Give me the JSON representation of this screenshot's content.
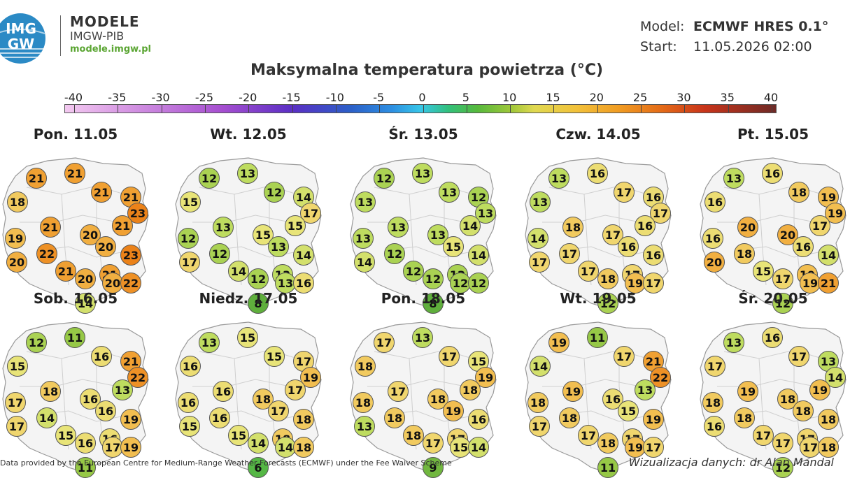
{
  "header": {
    "logo_text": [
      "IMG",
      "GW"
    ],
    "brand_title": "MODELE",
    "brand_sub": "IMGW-PIB",
    "brand_url": "modele.imgw.pl",
    "model_label": "Model:",
    "model_value": "ECMWF HRES 0.1°",
    "start_label": "Start:",
    "start_value": "11.05.2026 02:00"
  },
  "title": "Maksymalna temperatura powietrza (°C)",
  "colorbar": {
    "ticks": [
      "-40",
      "-35",
      "-30",
      "-25",
      "-20",
      "-15",
      "-10",
      "-5",
      "0",
      "5",
      "10",
      "15",
      "20",
      "25",
      "30",
      "35",
      "40"
    ],
    "range": [
      -40,
      40
    ]
  },
  "panels": [
    {
      "title": "Pon. 11.05",
      "values": [
        21,
        21,
        21,
        18,
        21,
        23,
        20,
        19,
        21,
        21,
        20,
        21,
        22,
        20,
        23,
        21,
        20,
        20,
        22,
        14
      ]
    },
    {
      "title": "Wt. 12.05",
      "values": [
        12,
        13,
        14,
        15,
        12,
        17,
        15,
        12,
        15,
        13,
        13,
        13,
        12,
        17,
        14,
        14,
        12,
        13,
        16,
        8
      ]
    },
    {
      "title": "Śr. 13.05",
      "values": [
        12,
        13,
        12,
        13,
        13,
        13,
        13,
        13,
        14,
        13,
        15,
        12,
        12,
        14,
        14,
        12,
        12,
        12,
        12,
        8
      ]
    },
    {
      "title": "Czw. 14.05",
      "values": [
        13,
        16,
        16,
        13,
        17,
        17,
        17,
        14,
        16,
        18,
        16,
        17,
        17,
        17,
        16,
        17,
        18,
        19,
        17,
        12
      ]
    },
    {
      "title": "Pt. 15.05",
      "values": [
        13,
        16,
        19,
        16,
        18,
        19,
        20,
        16,
        17,
        20,
        16,
        19,
        18,
        20,
        14,
        15,
        17,
        19,
        21,
        12
      ]
    },
    {
      "title": "Sob. 16.05",
      "values": [
        12,
        11,
        21,
        15,
        16,
        22,
        16,
        17,
        13,
        18,
        16,
        16,
        14,
        17,
        19,
        15,
        16,
        17,
        19,
        11
      ]
    },
    {
      "title": "Niedz. 17.05",
      "values": [
        13,
        15,
        17,
        16,
        15,
        19,
        18,
        16,
        17,
        16,
        17,
        18,
        16,
        15,
        18,
        15,
        14,
        14,
        18,
        6
      ]
    },
    {
      "title": "Pon. 18.05",
      "values": [
        17,
        13,
        15,
        18,
        17,
        19,
        18,
        18,
        18,
        17,
        19,
        17,
        18,
        13,
        16,
        18,
        17,
        15,
        14,
        9
      ]
    },
    {
      "title": "Wt. 19.05",
      "values": [
        19,
        11,
        21,
        14,
        17,
        22,
        16,
        18,
        13,
        19,
        15,
        17,
        18,
        17,
        19,
        17,
        18,
        19,
        17,
        11
      ]
    },
    {
      "title": "Śr. 20.05",
      "values": [
        13,
        16,
        13,
        17,
        17,
        14,
        18,
        18,
        19,
        19,
        18,
        17,
        18,
        16,
        18,
        17,
        17,
        17,
        18,
        12
      ]
    }
  ],
  "footer": {
    "left": "Data provided by the European Centre for Medium-Range Weather Forecasts (ECMWF) under the Fee Waiver Scheme",
    "right": "Wizualizacja danych: dr Alan Mandal"
  }
}
